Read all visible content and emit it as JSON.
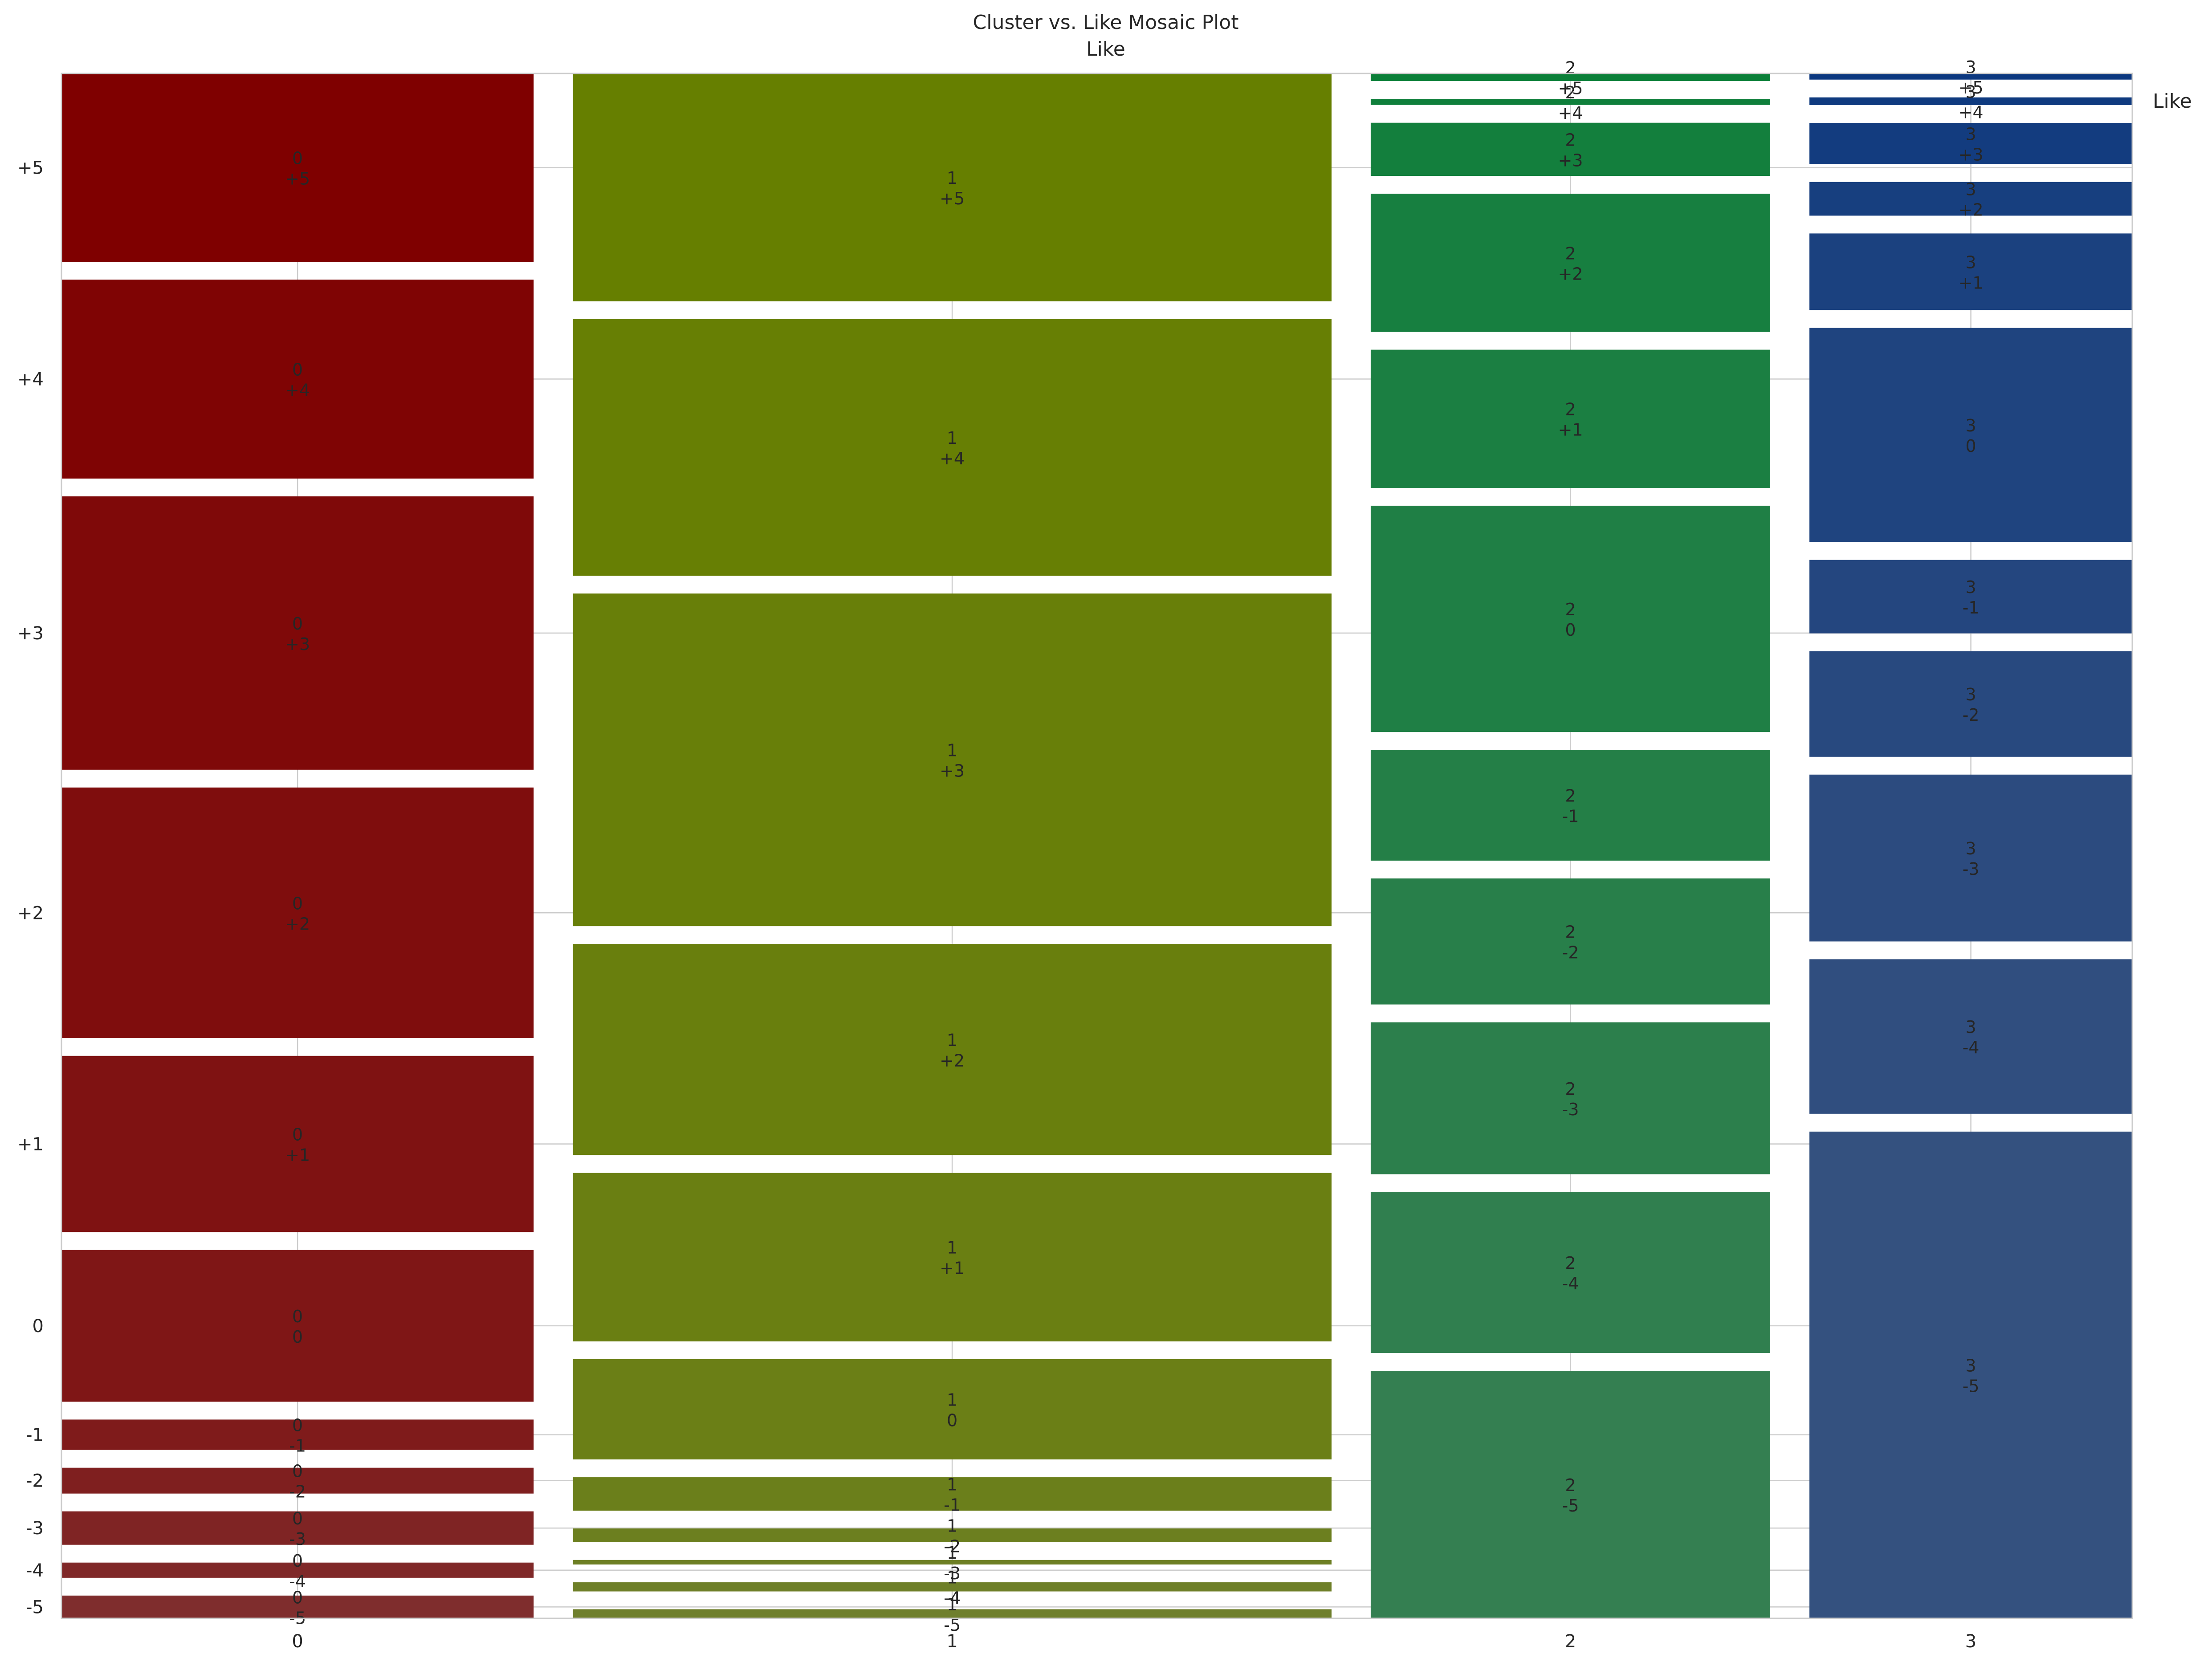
{
  "chart_data": {
    "type": "mosaic",
    "title": "Cluster vs. Like Mosaic Plot",
    "subtitle": "Like",
    "legend_label": "Like",
    "grid": true,
    "x_categories": [
      "0",
      "1",
      "2",
      "3"
    ],
    "y_tick_labels": [
      "+5",
      "+4",
      "+3",
      "+2",
      "+1",
      "0",
      "-1",
      "-2",
      "-3",
      "-4",
      "-5"
    ],
    "like_levels": [
      "-5",
      "-4",
      "-3",
      "-2",
      "-1",
      "0",
      "+1",
      "+2",
      "+3",
      "+4",
      "+5"
    ],
    "column_proportions": [
      0.234,
      0.376,
      0.198,
      0.16
    ],
    "series": [
      {
        "cluster": "0",
        "color": "#7f0000",
        "proportions": [
          0.015,
          0.01,
          0.022,
          0.017,
          0.02,
          0.1,
          0.116,
          0.165,
          0.18,
          0.131,
          0.124
        ]
      },
      {
        "cluster": "1",
        "color": "#667f00",
        "proportions": [
          0.006,
          0.006,
          0.003,
          0.009,
          0.022,
          0.066,
          0.111,
          0.139,
          0.219,
          0.169,
          0.15
        ]
      },
      {
        "cluster": "2",
        "color": "#0b7f38",
        "proportions": [
          0.163,
          0.106,
          0.1,
          0.083,
          0.073,
          0.149,
          0.091,
          0.091,
          0.035,
          0.004,
          0.005
        ]
      },
      {
        "cluster": "3",
        "color": "#0b377f",
        "proportions": [
          0.318,
          0.101,
          0.109,
          0.069,
          0.048,
          0.14,
          0.05,
          0.022,
          0.027,
          0.005,
          0.004
        ]
      }
    ]
  }
}
